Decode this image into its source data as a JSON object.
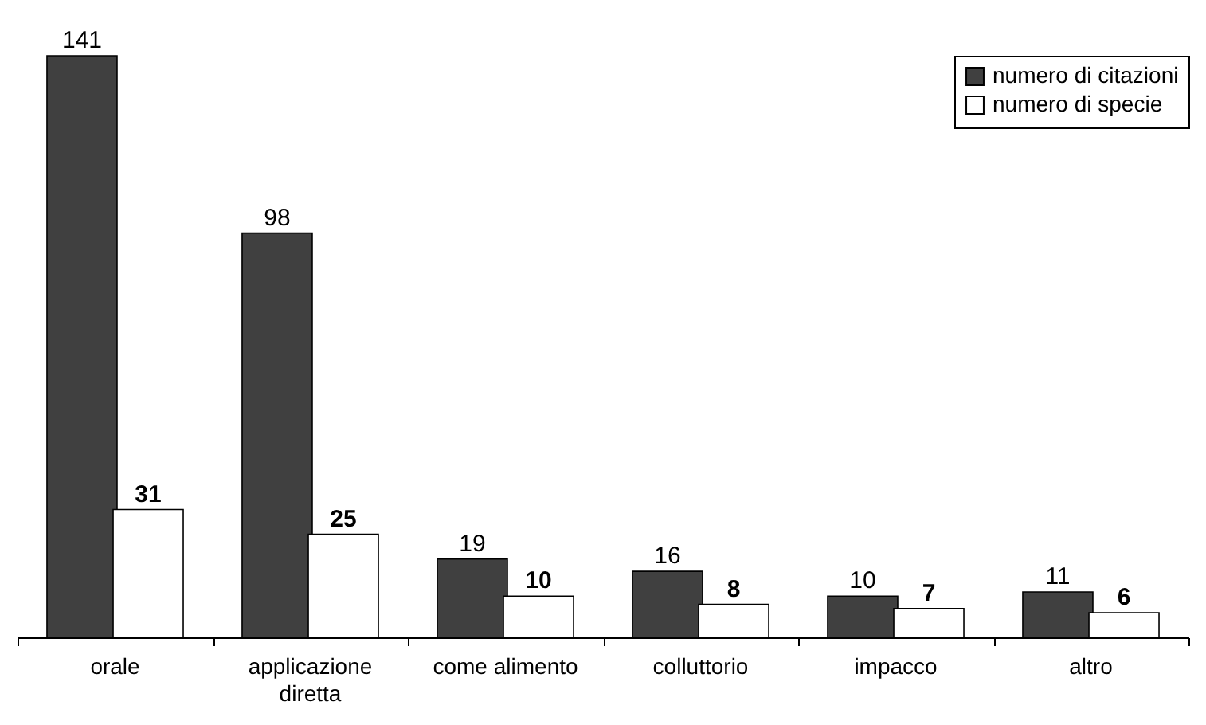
{
  "chart_data": {
    "type": "bar",
    "categories": [
      "orale",
      "applicazione diretta",
      "come alimento",
      "colluttorio",
      "impacco",
      "altro"
    ],
    "series": [
      {
        "name": "numero di citazioni",
        "color": "#404040",
        "values": [
          141,
          98,
          19,
          16,
          10,
          11
        ]
      },
      {
        "name": "numero di specie",
        "color": "#ffffff",
        "values": [
          31,
          25,
          10,
          8,
          7,
          6
        ]
      }
    ],
    "data_labels": true,
    "legend": "top right",
    "grid": false
  }
}
